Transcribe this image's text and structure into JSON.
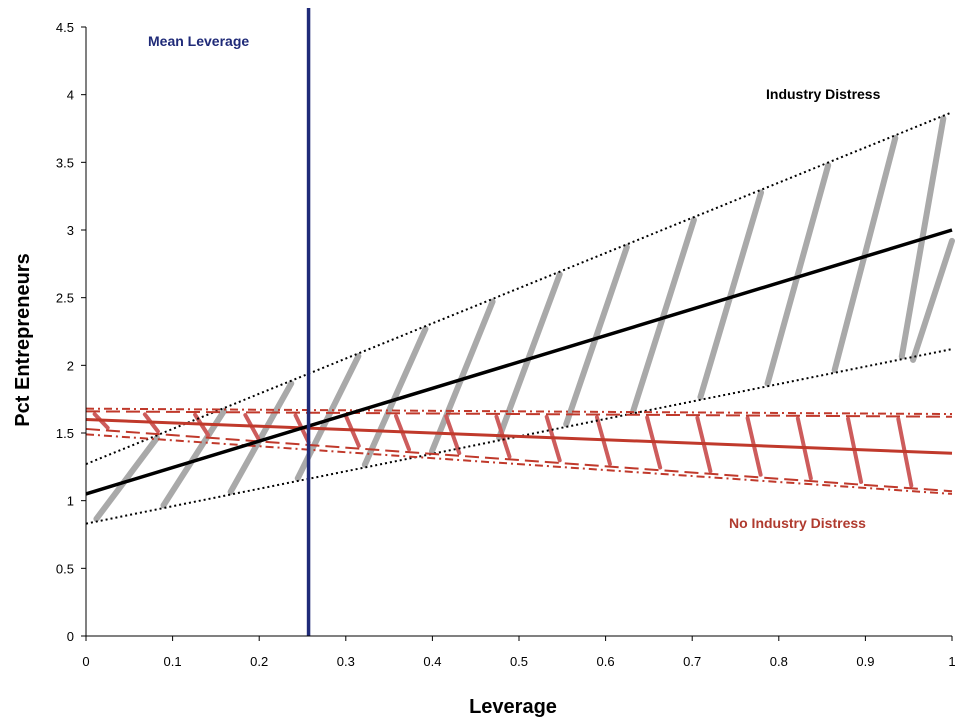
{
  "chart_data": {
    "type": "line",
    "title": "",
    "xlabel": "Leverage",
    "ylabel": "Pct  Entrepreneurs",
    "xlim": [
      0,
      1
    ],
    "ylim": [
      0,
      4.5
    ],
    "x_ticks": [
      "0",
      "0.1",
      "0.2",
      "0.3",
      "0.4",
      "0.5",
      "0.6",
      "0.7",
      "0.8",
      "0.9",
      "1"
    ],
    "y_ticks": [
      "0",
      "0.5",
      "1",
      "1.5",
      "2",
      "2.5",
      "3",
      "3.5",
      "4",
      "4.5"
    ],
    "grid": false,
    "legend": "none",
    "mean_leverage": {
      "x": 0.257,
      "label": "Mean Leverage",
      "color": "#1f2a78"
    },
    "series": [
      {
        "key": "industry_distress",
        "label": "Industry Distress",
        "color": "#000000",
        "band_color": "#a9a9a9",
        "x": [
          0,
          1
        ],
        "estimate": [
          1.05,
          3.0
        ],
        "lower": [
          0.83,
          2.12
        ],
        "upper": [
          1.27,
          3.87
        ]
      },
      {
        "key": "no_industry_distress",
        "label": "No Industry Distress",
        "color": "#c0392b",
        "x": [
          0,
          1
        ],
        "estimate": [
          1.6,
          1.35
        ],
        "inner_lower": [
          1.53,
          1.07
        ],
        "inner_upper": [
          1.66,
          1.62
        ],
        "outer_lower": [
          1.49,
          1.05
        ],
        "outer_upper": [
          1.68,
          1.64
        ]
      }
    ]
  }
}
